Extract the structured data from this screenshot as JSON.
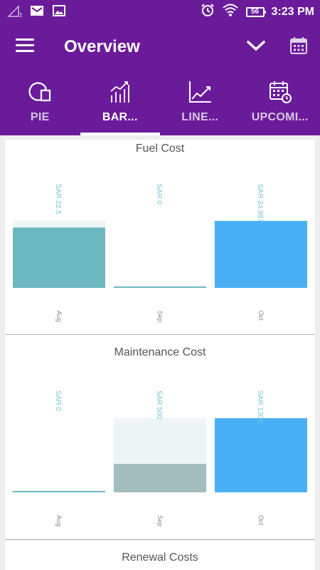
{
  "status_bar": {
    "time": "3:23 PM",
    "battery": "56",
    "icons": [
      "signal-icon",
      "mail-icon",
      "image-icon",
      "alarm-icon",
      "wifi-icon",
      "battery-icon"
    ]
  },
  "toolbar": {
    "title": "Overview",
    "icons": [
      "menu-icon",
      "chevron-down-icon",
      "calendar-icon"
    ]
  },
  "tabs": [
    {
      "label": "PIE",
      "icon": "pie-chart-icon",
      "active": false
    },
    {
      "label": "BAR...",
      "icon": "bar-chart-icon",
      "active": true
    },
    {
      "label": "LINE...",
      "icon": "line-chart-icon",
      "active": false
    },
    {
      "label": "UPCOMI...",
      "icon": "calendar-clock-icon",
      "active": false
    }
  ],
  "colors": {
    "primary": "#6a1b9a",
    "bar_teal": "#6cb8c1",
    "bar_blue": "#49b0f5",
    "bar_grey": "#a3bdbd",
    "bar_bg": "#eef5f6",
    "value_label": "#7bc4d6",
    "tick_label": "#888888"
  },
  "chart_data": [
    {
      "type": "bar",
      "title": "Fuel Cost",
      "categories": [
        "Aug",
        "Sep",
        "Oct"
      ],
      "values": [
        22.5,
        0,
        24.997
      ],
      "value_labels": [
        "SAR 22.5",
        "SAR 0",
        "SAR 24.997"
      ],
      "bar_colors": [
        "#6cb8c1",
        "#6cb8c1",
        "#49b0f5"
      ],
      "ylim": [
        0,
        24.997
      ]
    },
    {
      "type": "bar",
      "title": "Maintenance Cost",
      "categories": [
        "Aug",
        "Sep",
        "Oct"
      ],
      "values": [
        0,
        500,
        1300
      ],
      "value_labels": [
        "SAR 0",
        "SAR 500",
        "SAR 1300"
      ],
      "bar_colors": [
        "#6cb8c1",
        "#a3bdbd",
        "#49b0f5"
      ],
      "ylim": [
        0,
        1300
      ]
    },
    {
      "type": "bar",
      "title": "Renewal Costs"
    }
  ]
}
